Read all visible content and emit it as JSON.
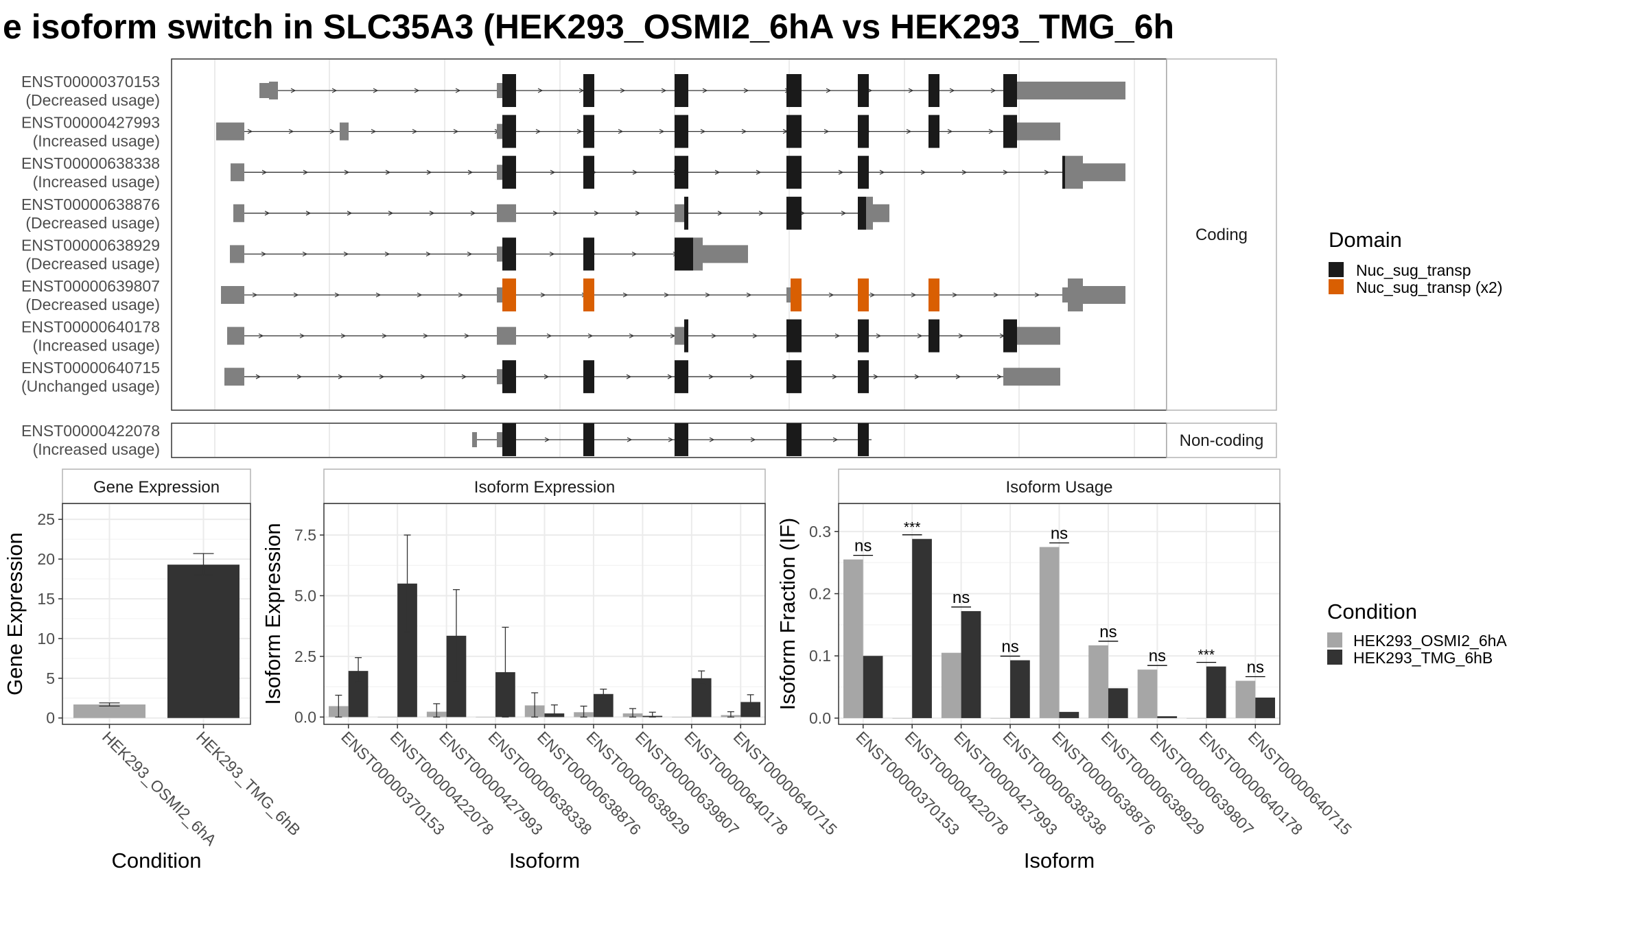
{
  "title": "e isoform switch in SLC35A3 (HEK293_OSMI2_6hA vs HEK293_TMG_6h",
  "colors": {
    "domain": "#1a1a1a",
    "domain_x2": "#d95f02",
    "utr": "#808080",
    "cond_a": "#a6a6a6",
    "cond_b": "#333333"
  },
  "chart_data": [
    {
      "type": "transcript-structure",
      "panels": [
        {
          "label": "Coding",
          "transcripts": [
            {
              "id": "ENST00000370153",
              "status": "(Decreased usage)",
              "domain": "Nuc_sug_transp"
            },
            {
              "id": "ENST00000427993",
              "status": "(Increased usage)",
              "domain": "Nuc_sug_transp"
            },
            {
              "id": "ENST00000638338",
              "status": "(Increased usage)",
              "domain": "Nuc_sug_transp"
            },
            {
              "id": "ENST00000638876",
              "status": "(Decreased usage)",
              "domain": "Nuc_sug_transp"
            },
            {
              "id": "ENST00000638929",
              "status": "(Decreased usage)",
              "domain": "Nuc_sug_transp"
            },
            {
              "id": "ENST00000639807",
              "status": "(Decreased usage)",
              "domain": "Nuc_sug_transp (x2)"
            },
            {
              "id": "ENST00000640178",
              "status": "(Increased usage)",
              "domain": "Nuc_sug_transp"
            },
            {
              "id": "ENST00000640715",
              "status": "(Unchanged usage)",
              "domain": "Nuc_sug_transp"
            }
          ]
        },
        {
          "label": "Non-coding",
          "transcripts": [
            {
              "id": "ENST00000422078",
              "status": "(Increased usage)",
              "domain": "Nuc_sug_transp"
            }
          ]
        }
      ],
      "legend": {
        "title": "Domain",
        "entries": [
          "Nuc_sug_transp",
          "Nuc_sug_transp (x2)"
        ],
        "position": "right"
      }
    },
    {
      "type": "bar",
      "title": "Gene Expression",
      "xlabel": "Condition",
      "ylabel": "Gene Expression",
      "ylim": [
        -0.8,
        27
      ],
      "yticks": [
        0,
        5,
        10,
        15,
        20,
        25
      ],
      "categories": [
        "HEK293_OSMI2_6hA",
        "HEK293_TMG_6hB"
      ],
      "values": [
        1.7,
        19.3
      ],
      "error_low": [
        1.5,
        18.0
      ],
      "error_high": [
        1.9,
        20.7
      ]
    },
    {
      "type": "bar",
      "title": "Isoform Expression",
      "xlabel": "Isoform",
      "ylabel": "Isoform Expression",
      "ylim": [
        -0.3,
        8.8
      ],
      "yticks": [
        0.0,
        2.5,
        5.0,
        7.5
      ],
      "ytick_labels": [
        "0.0",
        "2.5",
        "5.0",
        "7.5"
      ],
      "categories": [
        "ENST00000370153",
        "ENST00000422078",
        "ENST00000427993",
        "ENST00000638338",
        "ENST00000638876",
        "ENST00000638929",
        "ENST00000639807",
        "ENST00000640178",
        "ENST00000640715"
      ],
      "series": [
        {
          "name": "HEK293_OSMI2_6hA",
          "values": [
            0.45,
            0.0,
            0.22,
            0.0,
            0.48,
            0.2,
            0.15,
            0.0,
            0.08
          ],
          "err_low": [
            0.0,
            0.0,
            0.0,
            0.0,
            0.0,
            0.0,
            0.0,
            0.0,
            0.0
          ],
          "err_high": [
            0.9,
            0.0,
            0.55,
            0.0,
            1.0,
            0.45,
            0.35,
            0.0,
            0.22
          ]
        },
        {
          "name": "HEK293_TMG_6hB",
          "values": [
            1.9,
            5.5,
            3.35,
            1.85,
            0.15,
            0.95,
            0.05,
            1.6,
            0.62
          ],
          "err_low": [
            1.45,
            3.5,
            1.45,
            0.0,
            0.05,
            0.75,
            0.0,
            1.35,
            0.35
          ],
          "err_high": [
            2.45,
            7.5,
            5.25,
            3.7,
            0.5,
            1.15,
            0.2,
            1.9,
            0.92
          ]
        }
      ]
    },
    {
      "type": "bar",
      "title": "Isoform Usage",
      "xlabel": "Isoform",
      "ylabel": "Isoform Fraction (IF)",
      "ylim": [
        -0.01,
        0.345
      ],
      "yticks": [
        0.0,
        0.1,
        0.2,
        0.3
      ],
      "ytick_labels": [
        "0.0",
        "0.1",
        "0.2",
        "0.3"
      ],
      "categories": [
        "ENST00000370153",
        "ENST00000422078",
        "ENST00000427993",
        "ENST00000638338",
        "ENST00000638876",
        "ENST00000638929",
        "ENST00000639807",
        "ENST00000640178",
        "ENST00000640715"
      ],
      "series": [
        {
          "name": "HEK293_OSMI2_6hA",
          "values": [
            0.255,
            0.0,
            0.105,
            0.0,
            0.275,
            0.117,
            0.078,
            0.0,
            0.06
          ]
        },
        {
          "name": "HEK293_TMG_6hB",
          "values": [
            0.1,
            0.288,
            0.172,
            0.093,
            0.01,
            0.048,
            0.003,
            0.083,
            0.033
          ]
        }
      ],
      "significance": [
        "ns",
        "***",
        "ns",
        "ns",
        "ns",
        "ns",
        "ns",
        "***",
        "ns"
      ],
      "legend": {
        "title": "Condition",
        "entries": [
          "HEK293_OSMI2_6hA",
          "HEK293_TMG_6hB"
        ],
        "position": "right"
      }
    }
  ]
}
